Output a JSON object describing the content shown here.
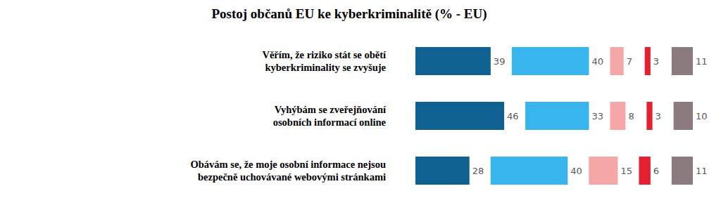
{
  "chart_data": {
    "type": "bar",
    "title": "Postoj občanů EU ke kyberkriminalitě (% - EU)",
    "orientation": "horizontal",
    "stacked": true,
    "data_labels": true,
    "tick_labels": false,
    "categories": [
      "Věřím, že riziko stát se obětí kyberkriminality se zvyšuje",
      "Vyhýbám se zveřejňování osobních informací online",
      "Obávám se, že moje osobní informace nejsou bezpečně uchovávané webovými stránkami"
    ],
    "series": [
      {
        "color": "#0e6190",
        "values": [
          39,
          46,
          28
        ]
      },
      {
        "color": "#38b5ec",
        "values": [
          40,
          33,
          40
        ]
      },
      {
        "color": "#f5a6a6",
        "values": [
          7,
          8,
          15
        ]
      },
      {
        "color": "#e32130",
        "values": [
          3,
          3,
          6
        ]
      },
      {
        "color": "#8b7b7e",
        "values": [
          11,
          10,
          11
        ]
      }
    ]
  }
}
